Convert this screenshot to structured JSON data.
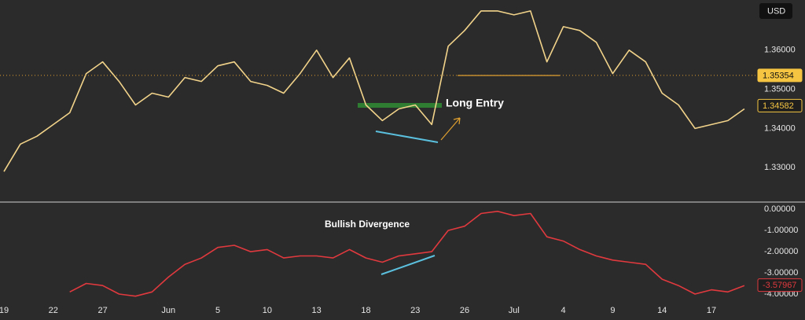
{
  "chart_data": [
    {
      "type": "line",
      "currency": "USD",
      "annotation": "Long Entry",
      "color": "#f2d38a",
      "categories": [
        "19",
        null,
        null,
        "22",
        null,
        null,
        "27",
        null,
        null,
        null,
        "Jun",
        null,
        null,
        "5",
        null,
        null,
        "10",
        null,
        null,
        "13",
        null,
        null,
        "18",
        null,
        null,
        "23",
        null,
        null,
        "26",
        null,
        null,
        "Jul",
        null,
        null,
        "4",
        null,
        null,
        "9",
        null,
        null,
        "14",
        null,
        null,
        "17",
        null,
        null
      ],
      "values": [
        1.329,
        1.336,
        1.338,
        1.341,
        1.344,
        1.354,
        1.357,
        1.352,
        1.346,
        1.349,
        1.348,
        1.353,
        1.352,
        1.356,
        1.357,
        1.352,
        1.351,
        1.349,
        1.354,
        1.36,
        1.353,
        1.358,
        1.346,
        1.342,
        1.345,
        1.346,
        1.341,
        1.361,
        1.365,
        1.37,
        1.37,
        1.369,
        1.37,
        1.357,
        1.366,
        1.365,
        1.362,
        1.354,
        1.36,
        1.357,
        1.349,
        1.346,
        1.34,
        1.341,
        1.342,
        1.345
      ],
      "ylim": [
        1.3212,
        1.3728
      ],
      "yticks": [
        {
          "value": 1.33,
          "label": "1.33000"
        },
        {
          "value": 1.34,
          "label": "1.34000"
        },
        {
          "value": 1.35,
          "label": "1.35000"
        },
        {
          "value": 1.36,
          "label": "1.36000"
        }
      ],
      "markers": [
        1.35354,
        1.34582
      ]
    },
    {
      "type": "line",
      "annotation": "Bullish Divergence",
      "color": "#e0393e",
      "values": [
        null,
        null,
        null,
        null,
        -3.9,
        -3.5,
        -3.6,
        -4.0,
        -4.1,
        -3.9,
        -3.2,
        -2.6,
        -2.3,
        -1.8,
        -1.7,
        -2.0,
        -1.9,
        -2.3,
        -2.2,
        -2.2,
        -2.3,
        -1.9,
        -2.3,
        -2.5,
        -2.2,
        -2.1,
        -2.0,
        -1.0,
        -0.8,
        -0.2,
        -0.1,
        -0.3,
        -0.2,
        -1.3,
        -1.5,
        -1.9,
        -2.2,
        -2.4,
        -2.5,
        -2.6,
        -3.3,
        -3.6,
        -4.0,
        -3.8,
        -3.9,
        -3.6
      ],
      "ylim": [
        -4.37,
        0.3
      ],
      "yticks": [
        {
          "value": 0,
          "label": "0.00000"
        },
        {
          "value": -1,
          "label": "-1.00000"
        },
        {
          "value": -2,
          "label": "-2.00000"
        },
        {
          "value": -3,
          "label": "-3.00000"
        },
        {
          "value": -4,
          "label": "-4.00000"
        }
      ],
      "markers": [
        -3.57967
      ]
    }
  ]
}
